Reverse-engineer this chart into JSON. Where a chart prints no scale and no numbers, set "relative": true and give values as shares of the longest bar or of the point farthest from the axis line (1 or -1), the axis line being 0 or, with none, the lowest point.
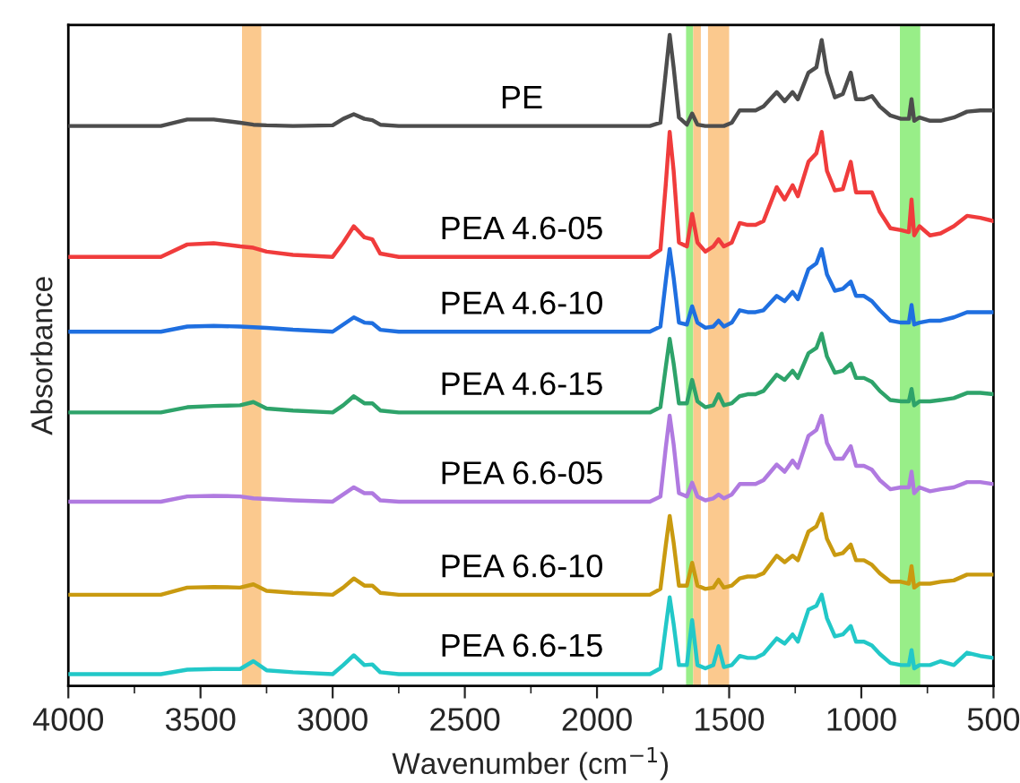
{
  "chart_data": {
    "type": "line",
    "relative": true,
    "xlabel": "Wavenumber (cm$^{−1}$)",
    "ylabel": "Absorbance",
    "tick_labels": "x",
    "xlim": [
      4000,
      500
    ],
    "xticks": [
      4000,
      3500,
      3000,
      2500,
      2000,
      1500,
      1000,
      500
    ],
    "x": [
      4000,
      3650,
      3550,
      3450,
      3350,
      3300,
      3250,
      3150,
      3000,
      2960,
      2920,
      2880,
      2850,
      2820,
      2750,
      1800,
      1760,
      1740,
      1725,
      1710,
      1690,
      1660,
      1640,
      1620,
      1590,
      1560,
      1540,
      1520,
      1490,
      1460,
      1430,
      1400,
      1370,
      1320,
      1290,
      1260,
      1240,
      1200,
      1170,
      1150,
      1130,
      1100,
      1070,
      1040,
      1020,
      990,
      960,
      930,
      890,
      850,
      820,
      810,
      800,
      780,
      740,
      700,
      650,
      600,
      550,
      500
    ],
    "bands": [
      {
        "axis": "x",
        "from": 3343,
        "to": 3270,
        "color": "#fbc98e"
      },
      {
        "axis": "x",
        "from": 1663,
        "to": 1636,
        "color": "#98ee88"
      },
      {
        "axis": "x",
        "from": 1636,
        "to": 1607,
        "color": "#fbc98e"
      },
      {
        "axis": "x",
        "from": 1580,
        "to": 1500,
        "color": "#fbc98e"
      },
      {
        "axis": "x",
        "from": 854,
        "to": 777,
        "color": "#98ee88"
      }
    ],
    "series": [
      {
        "name": "PE",
        "color": "#4d4d4d",
        "values": [
          0.86,
          0.86,
          0.87,
          0.87,
          0.865,
          0.862,
          0.861,
          0.86,
          0.861,
          0.871,
          0.878,
          0.871,
          0.869,
          0.862,
          0.86,
          0.86,
          0.865,
          0.942,
          1.0,
          0.95,
          0.873,
          0.862,
          0.879,
          0.862,
          0.86,
          0.86,
          0.86,
          0.86,
          0.865,
          0.884,
          0.884,
          0.884,
          0.89,
          0.912,
          0.898,
          0.912,
          0.901,
          0.942,
          0.95,
          0.992,
          0.942,
          0.904,
          0.909,
          0.942,
          0.901,
          0.901,
          0.906,
          0.89,
          0.876,
          0.871,
          0.871,
          0.901,
          0.868,
          0.873,
          0.868,
          0.868,
          0.873,
          0.882,
          0.884,
          0.884
        ]
      },
      {
        "name": "PEA 4.6-05",
        "color": "#f03c3c",
        "values": [
          0.659,
          0.659,
          0.678,
          0.68,
          0.675,
          0.673,
          0.667,
          0.662,
          0.659,
          0.681,
          0.706,
          0.689,
          0.686,
          0.664,
          0.659,
          0.659,
          0.67,
          0.769,
          0.851,
          0.791,
          0.681,
          0.675,
          0.725,
          0.681,
          0.667,
          0.675,
          0.686,
          0.675,
          0.681,
          0.711,
          0.708,
          0.708,
          0.714,
          0.766,
          0.747,
          0.769,
          0.752,
          0.805,
          0.818,
          0.851,
          0.791,
          0.761,
          0.763,
          0.805,
          0.758,
          0.758,
          0.758,
          0.728,
          0.703,
          0.7,
          0.697,
          0.747,
          0.692,
          0.706,
          0.692,
          0.695,
          0.706,
          0.722,
          0.719,
          0.714
        ]
      },
      {
        "name": "PEA 4.6-10",
        "color": "#1f6fe0",
        "values": [
          0.544,
          0.544,
          0.552,
          0.553,
          0.552,
          0.551,
          0.55,
          0.547,
          0.544,
          0.555,
          0.566,
          0.558,
          0.557,
          0.547,
          0.544,
          0.544,
          0.552,
          0.621,
          0.671,
          0.627,
          0.558,
          0.555,
          0.583,
          0.558,
          0.55,
          0.552,
          0.561,
          0.552,
          0.558,
          0.577,
          0.574,
          0.574,
          0.577,
          0.599,
          0.591,
          0.605,
          0.594,
          0.64,
          0.649,
          0.671,
          0.632,
          0.607,
          0.61,
          0.621,
          0.599,
          0.599,
          0.591,
          0.577,
          0.561,
          0.558,
          0.558,
          0.585,
          0.555,
          0.558,
          0.561,
          0.561,
          0.566,
          0.574,
          0.574,
          0.574
        ]
      },
      {
        "name": "PEA 4.6-15",
        "color": "#2ea36a",
        "values": [
          0.42,
          0.42,
          0.428,
          0.43,
          0.431,
          0.436,
          0.426,
          0.423,
          0.42,
          0.431,
          0.445,
          0.434,
          0.434,
          0.423,
          0.42,
          0.42,
          0.428,
          0.489,
          0.533,
          0.495,
          0.434,
          0.434,
          0.47,
          0.437,
          0.428,
          0.431,
          0.448,
          0.431,
          0.434,
          0.445,
          0.448,
          0.448,
          0.453,
          0.478,
          0.47,
          0.484,
          0.473,
          0.511,
          0.519,
          0.541,
          0.506,
          0.481,
          0.484,
          0.495,
          0.473,
          0.473,
          0.467,
          0.453,
          0.439,
          0.437,
          0.437,
          0.456,
          0.431,
          0.437,
          0.437,
          0.439,
          0.442,
          0.45,
          0.45,
          0.448
        ]
      },
      {
        "name": "PEA 6.6-05",
        "color": "#b07ae0",
        "values": [
          0.283,
          0.283,
          0.291,
          0.292,
          0.291,
          0.288,
          0.287,
          0.285,
          0.283,
          0.294,
          0.305,
          0.296,
          0.296,
          0.285,
          0.283,
          0.283,
          0.291,
          0.365,
          0.415,
          0.371,
          0.296,
          0.291,
          0.312,
          0.291,
          0.285,
          0.288,
          0.294,
          0.288,
          0.294,
          0.31,
          0.31,
          0.31,
          0.316,
          0.34,
          0.329,
          0.346,
          0.335,
          0.384,
          0.393,
          0.415,
          0.373,
          0.349,
          0.349,
          0.368,
          0.338,
          0.338,
          0.332,
          0.316,
          0.302,
          0.305,
          0.305,
          0.329,
          0.296,
          0.305,
          0.299,
          0.302,
          0.305,
          0.313,
          0.313,
          0.31
        ]
      },
      {
        "name": "PEA 6.6-10",
        "color": "#c99a10",
        "values": [
          0.14,
          0.14,
          0.151,
          0.152,
          0.151,
          0.156,
          0.146,
          0.143,
          0.14,
          0.151,
          0.165,
          0.154,
          0.154,
          0.143,
          0.14,
          0.14,
          0.149,
          0.215,
          0.261,
          0.22,
          0.154,
          0.154,
          0.189,
          0.154,
          0.149,
          0.151,
          0.163,
          0.151,
          0.154,
          0.165,
          0.168,
          0.168,
          0.173,
          0.2,
          0.19,
          0.2,
          0.193,
          0.237,
          0.245,
          0.264,
          0.226,
          0.201,
          0.204,
          0.217,
          0.193,
          0.193,
          0.186,
          0.173,
          0.16,
          0.16,
          0.157,
          0.184,
          0.151,
          0.157,
          0.157,
          0.16,
          0.162,
          0.171,
          0.171,
          0.171
        ]
      },
      {
        "name": "PEA 6.6-15",
        "color": "#22c8c8",
        "values": [
          0.018,
          0.018,
          0.025,
          0.026,
          0.026,
          0.038,
          0.024,
          0.021,
          0.018,
          0.032,
          0.047,
          0.032,
          0.033,
          0.021,
          0.018,
          0.018,
          0.027,
          0.09,
          0.136,
          0.095,
          0.032,
          0.032,
          0.101,
          0.032,
          0.027,
          0.032,
          0.061,
          0.029,
          0.032,
          0.046,
          0.043,
          0.043,
          0.049,
          0.073,
          0.065,
          0.079,
          0.068,
          0.117,
          0.123,
          0.14,
          0.104,
          0.076,
          0.079,
          0.092,
          0.068,
          0.068,
          0.062,
          0.049,
          0.035,
          0.032,
          0.032,
          0.055,
          0.027,
          0.032,
          0.032,
          0.038,
          0.032,
          0.051,
          0.046,
          0.043
        ]
      }
    ]
  }
}
